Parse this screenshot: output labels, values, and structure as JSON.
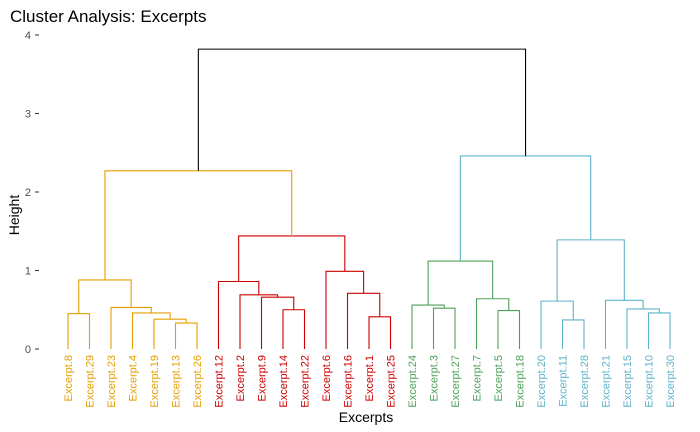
{
  "chart_data": {
    "type": "dendrogram",
    "title": "Cluster Analysis: Excerpts",
    "xlabel": "Excerpts",
    "ylabel": "Height",
    "ylim": [
      0,
      4
    ],
    "y_ticks": [
      0,
      1,
      2,
      3,
      4
    ],
    "grid": false,
    "leaves": [
      {
        "label": "Excerpt.8",
        "cluster": 0
      },
      {
        "label": "Excerpt.29",
        "cluster": 0
      },
      {
        "label": "Excerpt.23",
        "cluster": 0
      },
      {
        "label": "Excerpt.4",
        "cluster": 0
      },
      {
        "label": "Excerpt.19",
        "cluster": 0
      },
      {
        "label": "Excerpt.13",
        "cluster": 0
      },
      {
        "label": "Excerpt.26",
        "cluster": 0
      },
      {
        "label": "Excerpt.12",
        "cluster": 1
      },
      {
        "label": "Excerpt.2",
        "cluster": 1
      },
      {
        "label": "Excerpt.9",
        "cluster": 1
      },
      {
        "label": "Excerpt.14",
        "cluster": 1
      },
      {
        "label": "Excerpt.22",
        "cluster": 1
      },
      {
        "label": "Excerpt.6",
        "cluster": 1
      },
      {
        "label": "Excerpt.16",
        "cluster": 1
      },
      {
        "label": "Excerpt.1",
        "cluster": 1
      },
      {
        "label": "Excerpt.25",
        "cluster": 1
      },
      {
        "label": "Excerpt.24",
        "cluster": 2
      },
      {
        "label": "Excerpt.3",
        "cluster": 2
      },
      {
        "label": "Excerpt.27",
        "cluster": 2
      },
      {
        "label": "Excerpt.7",
        "cluster": 2
      },
      {
        "label": "Excerpt.5",
        "cluster": 2
      },
      {
        "label": "Excerpt.18",
        "cluster": 2
      },
      {
        "label": "Excerpt.20",
        "cluster": 3
      },
      {
        "label": "Excerpt.11",
        "cluster": 3
      },
      {
        "label": "Excerpt.28",
        "cluster": 3
      },
      {
        "label": "Excerpt.21",
        "cluster": 3
      },
      {
        "label": "Excerpt.15",
        "cluster": 3
      },
      {
        "label": "Excerpt.10",
        "cluster": 3
      },
      {
        "label": "Excerpt.30",
        "cluster": 3
      }
    ],
    "cluster_colors": [
      "#E69F00",
      "#CC0000",
      "#4DA058",
      "#5CB3C9"
    ],
    "root_color": "#000000",
    "merges": [
      {
        "a": "L0",
        "b": "L1",
        "h": 0.45,
        "cluster": 0
      },
      {
        "a": "L5",
        "b": "L6",
        "h": 0.33,
        "cluster": 0
      },
      {
        "a": "L4",
        "b": "M1",
        "h": 0.38,
        "cluster": 0
      },
      {
        "a": "L3",
        "b": "M2",
        "h": 0.46,
        "cluster": 0
      },
      {
        "a": "L2",
        "b": "M3",
        "h": 0.53,
        "cluster": 0
      },
      {
        "a": "M0",
        "b": "M4",
        "h": 0.88,
        "cluster": 0
      },
      {
        "a": "L10",
        "b": "L11",
        "h": 0.5,
        "cluster": 1
      },
      {
        "a": "L9",
        "b": "M6",
        "h": 0.66,
        "cluster": 1
      },
      {
        "a": "L8",
        "b": "M7",
        "h": 0.69,
        "cluster": 1
      },
      {
        "a": "L7",
        "b": "M8",
        "h": 0.86,
        "cluster": 1
      },
      {
        "a": "L14",
        "b": "L15",
        "h": 0.41,
        "cluster": 1
      },
      {
        "a": "L13",
        "b": "M10",
        "h": 0.71,
        "cluster": 1
      },
      {
        "a": "L12",
        "b": "M11",
        "h": 0.99,
        "cluster": 1
      },
      {
        "a": "M9",
        "b": "M12",
        "h": 1.44,
        "cluster": 1
      },
      {
        "a": "M5",
        "b": "M13",
        "h": 2.27,
        "cluster": 0
      },
      {
        "a": "L17",
        "b": "L18",
        "h": 0.52,
        "cluster": 2
      },
      {
        "a": "L16",
        "b": "M15",
        "h": 0.56,
        "cluster": 2
      },
      {
        "a": "L20",
        "b": "L21",
        "h": 0.49,
        "cluster": 2
      },
      {
        "a": "L19",
        "b": "M17",
        "h": 0.64,
        "cluster": 2
      },
      {
        "a": "M16",
        "b": "M18",
        "h": 1.12,
        "cluster": 2
      },
      {
        "a": "L23",
        "b": "L24",
        "h": 0.37,
        "cluster": 3
      },
      {
        "a": "L22",
        "b": "M20",
        "h": 0.61,
        "cluster": 3
      },
      {
        "a": "L27",
        "b": "L28",
        "h": 0.46,
        "cluster": 3
      },
      {
        "a": "L26",
        "b": "M22",
        "h": 0.51,
        "cluster": 3
      },
      {
        "a": "L25",
        "b": "M23",
        "h": 0.62,
        "cluster": 3
      },
      {
        "a": "M21",
        "b": "M24",
        "h": 1.39,
        "cluster": 3
      },
      {
        "a": "M19",
        "b": "M25",
        "h": 2.46,
        "cluster": 3
      },
      {
        "a": "M14",
        "b": "M26",
        "h": 3.82,
        "cluster": -1
      }
    ]
  }
}
